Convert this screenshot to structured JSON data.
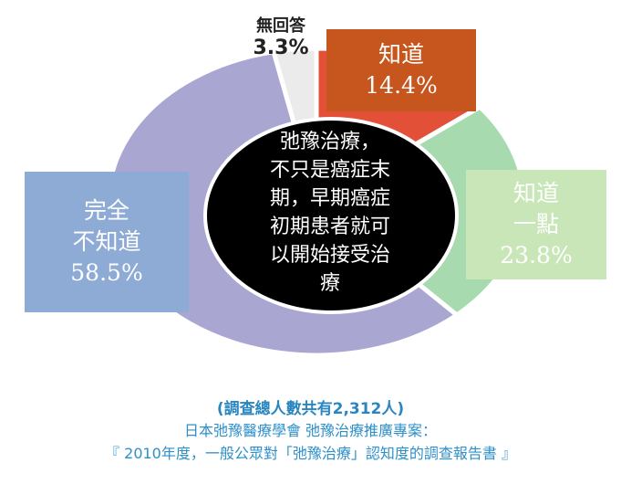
{
  "chart_data": {
    "type": "pie",
    "slices": [
      {
        "name": "知道",
        "value": 14.4,
        "color": "#e25038"
      },
      {
        "name": "知道一點",
        "value": 23.8,
        "color": "#a8dab0"
      },
      {
        "name": "完全不知道",
        "value": 58.5,
        "color": "#a9a7d2"
      },
      {
        "name": "無回答",
        "value": 3.3,
        "color": "#ebebeb"
      }
    ],
    "labels": {
      "know": {
        "line1": "知道",
        "line2": "14.4%"
      },
      "little": {
        "line1": "知道",
        "line2": "一點",
        "line3": "23.8%"
      },
      "none": {
        "line1": "完全",
        "line2": "不知道",
        "line3": "58.5%"
      },
      "noanswer": {
        "line1": "無回答",
        "line2": "3.3%"
      }
    },
    "center_text": [
      "弛豫治療，",
      "不只是癌症末",
      "期，早期癌症",
      "初期患者就可",
      "以開始接受治",
      "療"
    ]
  },
  "footer": {
    "line1": "(調查總人數共有2,312人)",
    "line2": "日本弛豫醫療學會  弛豫治療推廣專案：",
    "line3": "『 2010年度，一般公眾對「弛豫治療」認知度的調查報告書 』"
  }
}
